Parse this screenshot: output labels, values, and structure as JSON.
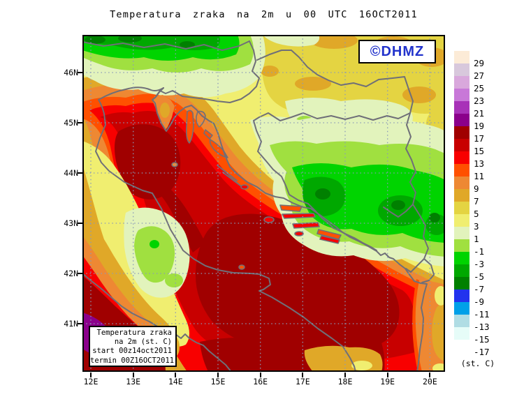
{
  "title": "Temperatura zraka na 2m u 00 UTC 16OCT2011",
  "watermark": "©DHMZ",
  "legend_box": {
    "lines": [
      "Temperatura zraka",
      "na 2m (st. C)",
      "start 00z14oct2011",
      "termin 00Z16OCT2011"
    ]
  },
  "axes": {
    "lat_labels": [
      "46N",
      "45N",
      "44N",
      "43N",
      "42N",
      "41N"
    ],
    "lon_labels": [
      "12E",
      "13E",
      "14E",
      "15E",
      "16E",
      "17E",
      "18E",
      "19E",
      "20E"
    ]
  },
  "colorbar": {
    "unit_label": "(st. C)",
    "labels": [
      "29",
      "27",
      "25",
      "23",
      "21",
      "19",
      "17",
      "15",
      "13",
      "11",
      "9",
      "7",
      "5",
      "3",
      "1",
      "-1",
      "-3",
      "-5",
      "-7",
      "-9",
      "-11",
      "-13",
      "-15",
      "-17"
    ],
    "swatch_colors": [
      "#FCEBD7",
      "#D8C8DC",
      "#D9A8DC",
      "#C878D8",
      "#A832B8",
      "#8B008B",
      "#A00000",
      "#C80000",
      "#F80000",
      "#FF5000",
      "#EE8833",
      "#E0A828",
      "#E4D442",
      "#F0EE70",
      "#E2F3BC",
      "#A0E040",
      "#00D400",
      "#00A800",
      "#008000",
      "#2233EE",
      "#00A0E8",
      "#B0DDE4",
      "#E6FCF8"
    ]
  },
  "map_palette": {
    "t19": "#8B008B",
    "t17": "#A00000",
    "t15": "#C80000",
    "t13": "#F80000",
    "t11": "#FF5000",
    "t9": "#EE8833",
    "t7": "#E0A828",
    "t5": "#E4D442",
    "t3": "#F0EE70",
    "t1": "#E2F3BC",
    "tm1": "#A0E040",
    "tm3": "#00D400",
    "tm5": "#00A800",
    "tm7": "#008000",
    "grid": "#8A9AB8",
    "border": "#6F6F78",
    "frame": "#000000",
    "watermark_blue": "#2233CC"
  }
}
